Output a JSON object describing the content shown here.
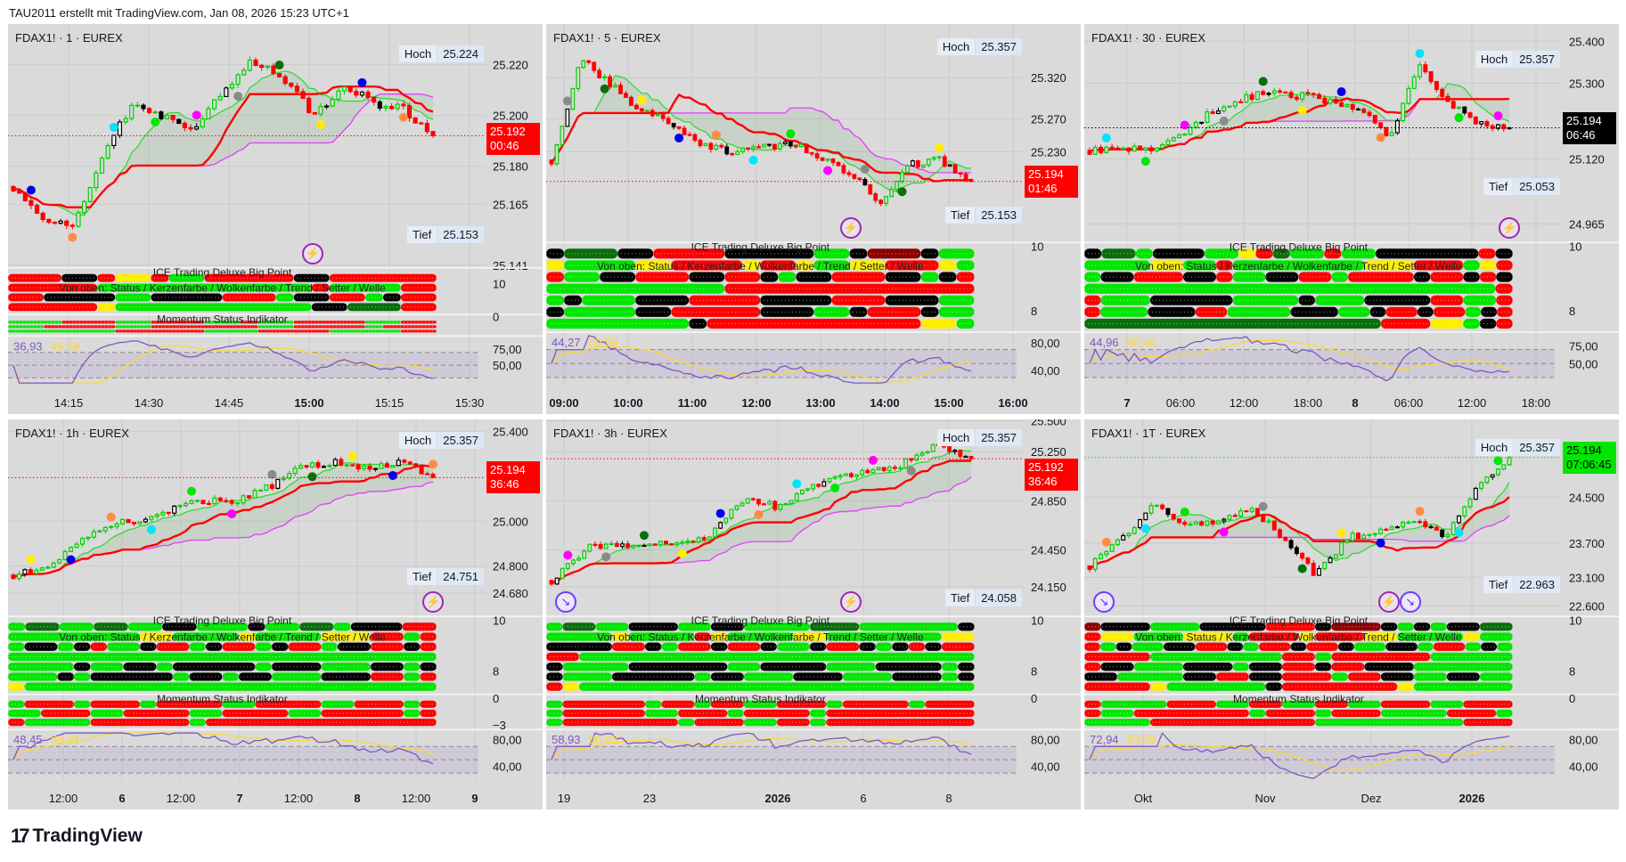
{
  "header": "TAU2011 erstellt mit TradingView.com, Jan 08, 2026 15:23 UTC+1",
  "logo": {
    "mark": "17",
    "text": "TradingView"
  },
  "labels": {
    "hoch": "Hoch",
    "tief": "Tief",
    "ice_title": "ICE Trading Deluxe Big Point",
    "ice_legend": "Von oben: Status / Kerzenfarbe / Wolkenfarbe / Trend / Setter / Welle",
    "momentum_title": "Momentum Status Indikator"
  },
  "colors": {
    "G": "#00e600",
    "R": "#ff0000",
    "K": "#000000",
    "Y": "#ffee00",
    "D": "#0a6e0a",
    "M": "#8b0000",
    "up": "#00d000",
    "down": "#ff0000",
    "rsi": "#7e57c2",
    "rsi_ma": "#fdd835",
    "cloud_line": "#e040fb",
    "base_line": "#ff0000",
    "conv_line": "#22dd22"
  },
  "panels": [
    {
      "title": "FDAX1! · 1 · EUREX",
      "hoch": "25.224",
      "hoch_v": 25224,
      "tief": "25.153",
      "tief_v": 25153,
      "last": "25.192",
      "last_v": 25192,
      "countdown": "00:46",
      "last_color": "#ff0000",
      "price_ticks": [
        "25.220",
        "25.200",
        "25.180",
        "25.165",
        "25.141"
      ],
      "time_ticks": [
        {
          "t": "14:15"
        },
        {
          "t": "14:30"
        },
        {
          "t": "14:45"
        },
        {
          "t": "15:00",
          "bold": true
        },
        {
          "t": "15:15"
        },
        {
          "t": "15:30"
        }
      ],
      "strip_ticks": [
        "10",
        "0"
      ],
      "rsi": "36,93",
      "rsi_ma": "46,58",
      "rsi_ticks": [
        "75,00",
        "50,00"
      ],
      "icons": [
        "lightning-icon"
      ]
    },
    {
      "title": "FDAX1! · 5 · EUREX",
      "hoch": "25.357",
      "hoch_v": 25357,
      "tief": "25.153",
      "tief_v": 25153,
      "last": "25.194",
      "last_v": 25194,
      "countdown": "01:46",
      "last_color": "#ff0000",
      "price_ticks": [
        "25.320",
        "25.270",
        "25.230"
      ],
      "time_ticks": [
        {
          "t": "09:00",
          "bold": true
        },
        {
          "t": "10:00",
          "bold": true
        },
        {
          "t": "11:00",
          "bold": true
        },
        {
          "t": "12:00",
          "bold": true
        },
        {
          "t": "13:00",
          "bold": true
        },
        {
          "t": "14:00",
          "bold": true
        },
        {
          "t": "15:00",
          "bold": true
        },
        {
          "t": "16:00",
          "bold": true
        }
      ],
      "strip_ticks": [
        "10",
        "8"
      ],
      "rsi": "44,27",
      "rsi_ma": "50,59",
      "rsi_ticks": [
        "80,00",
        "40,00"
      ],
      "icons": [
        "lightning-icon"
      ]
    },
    {
      "title": "FDAX1! · 30 · EUREX",
      "hoch": "25.357",
      "hoch_v": 25357,
      "tief": "25.053",
      "tief_v": 25053,
      "last": "25.194",
      "last_v": 25194,
      "countdown": "06:46",
      "last_color": "#000000",
      "price_ticks": [
        "25.400",
        "25.300",
        "25.120",
        "24.965"
      ],
      "time_ticks": [
        {
          "t": "7",
          "bold": true
        },
        {
          "t": "06:00"
        },
        {
          "t": "12:00"
        },
        {
          "t": "18:00"
        },
        {
          "t": "8",
          "bold": true
        },
        {
          "t": "06:00"
        },
        {
          "t": "12:00"
        },
        {
          "t": "18:00"
        }
      ],
      "strip_ticks": [
        "10",
        "8"
      ],
      "rsi": "44,96",
      "rsi_ma": "50,46",
      "rsi_ticks": [
        "75,00",
        "50,00"
      ],
      "icons": [
        "lightning-icon"
      ]
    },
    {
      "title": "FDAX1! · 1h · EUREX",
      "hoch": "25.357",
      "hoch_v": 25357,
      "tief": "24.751",
      "tief_v": 24751,
      "last": "25.194",
      "last_v": 25194,
      "countdown": "36:46",
      "last_color": "#ff0000",
      "price_ticks": [
        "25.400",
        "25.000",
        "24.800",
        "24.680"
      ],
      "time_ticks": [
        {
          "t": "12:00"
        },
        {
          "t": "6",
          "bold": true
        },
        {
          "t": "12:00"
        },
        {
          "t": "7",
          "bold": true
        },
        {
          "t": "12:00"
        },
        {
          "t": "8",
          "bold": true
        },
        {
          "t": "12:00"
        },
        {
          "t": "9",
          "bold": true
        }
      ],
      "strip_ticks": [
        "10",
        "8",
        "0",
        "−3"
      ],
      "rsi": "48,45",
      "rsi_ma": "55,01",
      "rsi_ticks": [
        "80,00",
        "40,00"
      ],
      "icons": [
        "lightning-icon"
      ]
    },
    {
      "title": "FDAX1! · 3h · EUREX",
      "hoch": "25.357",
      "hoch_v": 25357,
      "tief": "24.058",
      "tief_v": 24058,
      "last": "25.192",
      "last_v": 25192,
      "countdown": "36:46",
      "last_color": "#ff0000",
      "price_ticks": [
        "25.500",
        "25.250",
        "24.850",
        "24.450",
        "24.150"
      ],
      "time_ticks": [
        {
          "t": "19"
        },
        {
          "t": "23"
        },
        {
          "t": "2026",
          "bold": true
        },
        {
          "t": "6"
        },
        {
          "t": "8"
        }
      ],
      "strip_ticks": [
        "10",
        "8",
        "0"
      ],
      "rsi": "58,93",
      "rsi_ma": "60,93",
      "rsi_ticks": [
        "80,00",
        "40,00"
      ],
      "icons": [
        "lightning-icon",
        "arrow-icon"
      ]
    },
    {
      "title": "FDAX1! · 1T · EUREX",
      "hoch": "25.357",
      "hoch_v": 25357,
      "tief": "22.963",
      "tief_v": 22963,
      "last": "25.194",
      "last_v": 25194,
      "countdown": "07:06:45",
      "last_color": "#00e600",
      "price_ticks": [
        "24.500",
        "23.700",
        "23.100",
        "22.600"
      ],
      "time_ticks": [
        {
          "t": "Okt"
        },
        {
          "t": "Nov"
        },
        {
          "t": "Dez"
        },
        {
          "t": "2026",
          "bold": true
        }
      ],
      "strip_ticks": [
        "10",
        "8",
        "0"
      ],
      "rsi": "72,94",
      "rsi_ma": "63,29",
      "rsi_ticks": [
        "80,00",
        "40,00"
      ],
      "icons": [
        "lightning-icon",
        "arrow-icon",
        "arrow-icon"
      ]
    }
  ],
  "chart_data": [
    {
      "type": "candlestick",
      "title": "FDAX1! · 1 · EUREX",
      "ylim": [
        25140,
        25236
      ],
      "grid": true,
      "close_path": [
        25172,
        25160,
        25155,
        25185,
        25205,
        25200,
        25195,
        25210,
        25222,
        25215,
        25200,
        25212,
        25205,
        25203,
        25192
      ],
      "ice_rows": [
        "RRRKKRYYRGGRRRRRKKRRRRRR",
        "RRRRRGGGGGGGGGGGGRGGGGRR",
        "RRKKKKGGKKKKRRRGKKRRGKRR",
        "RRRRRYGGGGGGGGGGGKKDDDRR"
      ],
      "momentum_rows": [
        "GGGRRRGGRRRGGRGGRRRRGGRR",
        "GGRRRRGGRRRRRRGGRRRRGRRR",
        "GGGGGGRRRRRGGGRRRRGGGGRR"
      ]
    },
    {
      "type": "candlestick",
      "title": "FDAX1! · 5 · EUREX",
      "ylim": [
        25120,
        25385
      ],
      "grid": true,
      "close_path": [
        25220,
        25345,
        25310,
        25280,
        25265,
        25240,
        25230,
        25235,
        25240,
        25225,
        25200,
        25170,
        25215,
        25220,
        25194
      ],
      "ice_rows": [
        "KDDDKKRRRRKKKKKGGKMMMKGG",
        "YGGGGYYRRRRYRRYGGYYRRRYG",
        "RGGKKRRRKKRRKGKKRRRKKGKR",
        "GGGGGGGGGGRRRRRRRRRRRRRR",
        "GKGGGKKKRRRRKKKKRRRKKKGG",
        "KGGGGKKRRRRRKKKGGKRRRKGG",
        "GGGGGGGGKRRRRRRRRRRRRYYG"
      ],
      "momentum_rows": []
    },
    {
      "type": "candlestick",
      "title": "FDAX1! · 30 · EUREX",
      "ylim": [
        24921,
        25441
      ],
      "grid": true,
      "close_path": [
        25140,
        25150,
        25140,
        25170,
        25230,
        25260,
        25280,
        25270,
        25260,
        25240,
        25170,
        25340,
        25250,
        25200,
        25194
      ],
      "ice_rows": [
        "KDDGKKKGGYRDGGRGGKKKKKKRK",
        "GGGGYYGGRGGGGGGGGYYYRRRGYR",
        "GKKRRRKKRGGKKRRGRRRRKRRKRK",
        "GGGGGGGGGGGGGGGGGGGGGGGGR",
        "RGGGKKKKKGGGGKGGGKKKKRRGGR",
        "RGGGKKKRRGGGGKKKGGKRRKRRGKR",
        "DDDDDDDDDDDDDDDDDDRRRYYGKR"
      ],
      "momentum_rows": []
    },
    {
      "type": "candlestick",
      "title": "FDAX1! · 1h · EUREX",
      "ylim": [
        24576,
        25453
      ],
      "grid": true,
      "close_path": [
        24760,
        24790,
        24900,
        24980,
        25010,
        25060,
        25090,
        25090,
        25160,
        25250,
        25260,
        25230,
        25270,
        25194
      ],
      "ice_rows": [
        "GDDGGDDGGKKGGGKGGDDGKKKRR",
        "GGGGGGGGYYGGGGYGGGGYYYRRGR",
        "GKKGKRGGKRRGKRRGKRRGKKRRKR",
        "GGGGGGGGGGGGGGGGGGGGGGGGGG",
        "GGGGKGGKKGKKKKKGKKKGGGKKGK",
        "GGGKGKKKKKGKKGKKGGGKKKRRGR",
        "YGGGGGGGGGGGGGGGGGGGGGGGGG"
      ],
      "momentum_rows": [
        "GRRRGRRRGRRRRGGRRRRGGRRRGR",
        "GGRRRGGRRRRGGRRRRGGRRRRRGR",
        "RGGGGRRRRRRGRRRRRRRRRRRRRR"
      ]
    },
    {
      "type": "candlestick",
      "title": "FDAX1! · 3h · EUREX",
      "ylim": [
        23908,
        25512
      ],
      "grid": true,
      "close_path": [
        24200,
        24480,
        24490,
        24510,
        24530,
        24850,
        24800,
        24990,
        25080,
        25120,
        25300,
        25192
      ],
      "ice_rows": [
        "GDDGGKKKGGKKGGGGDDDGGGGGGK",
        "GGGGYGGGGRYGGGGYYGGGGGGGYY",
        "KKKKRRKGRRKRRKGGKRRKGKRKRR",
        "RRGGGGGGGGGGGGGGGGGGGGGGGG",
        "KGGGGKKKKKKGGKKKKGGGKKKKGK",
        "KGGGKKKKKGKKGGGKKKGGGKKKGK",
        "RYGGGGGGGGGGGGGGGGGGGGGGGG"
      ],
      "momentum_rows": [
        "GRRRRRGRRGRRGGRRRGRRRRGRRR",
        "GRRRRRGGRRRGRRRRGRRRRRRRRR",
        "GRRRRRRRGRRRGGRRGRRRRRRRRR"
      ]
    },
    {
      "type": "candlestick",
      "title": "FDAX1! · 1T · EUREX",
      "ylim": [
        22419,
        25860
      ],
      "grid": true,
      "close_path": [
        23300,
        23800,
        24350,
        24050,
        24100,
        24300,
        23800,
        23150,
        23800,
        23900,
        24150,
        23800,
        24700,
        25194
      ],
      "ice_rows": [
        "MKKKGGGKKKKRRRKMMMKGKGKKDD",
        "RYYGGGYYYGRRRYRRRYYGGGGYGG",
        "RGKGGKKRRKGRRKRRKGGKKGRRGKG",
        "RRRRGGGGGGGGRRGRRRRRRGGGGG",
        "RKKGGGKKKGKKRRKRRKKKGGGGGG",
        "KKGGGGKKRRKKRRRGRRKKGGKKGG",
        "RRRRYGGGGGGKRRRRRRRYGGGGGG"
      ],
      "momentum_rows": [
        "RGGGGRRRGGRRGGRRGGRRRGGRRR",
        "RGGRRRRRRRGRRRGRRRGGGGRRRG",
        "GGGGRRRRRRRRRRGGGGGGGGGRRR"
      ]
    }
  ]
}
